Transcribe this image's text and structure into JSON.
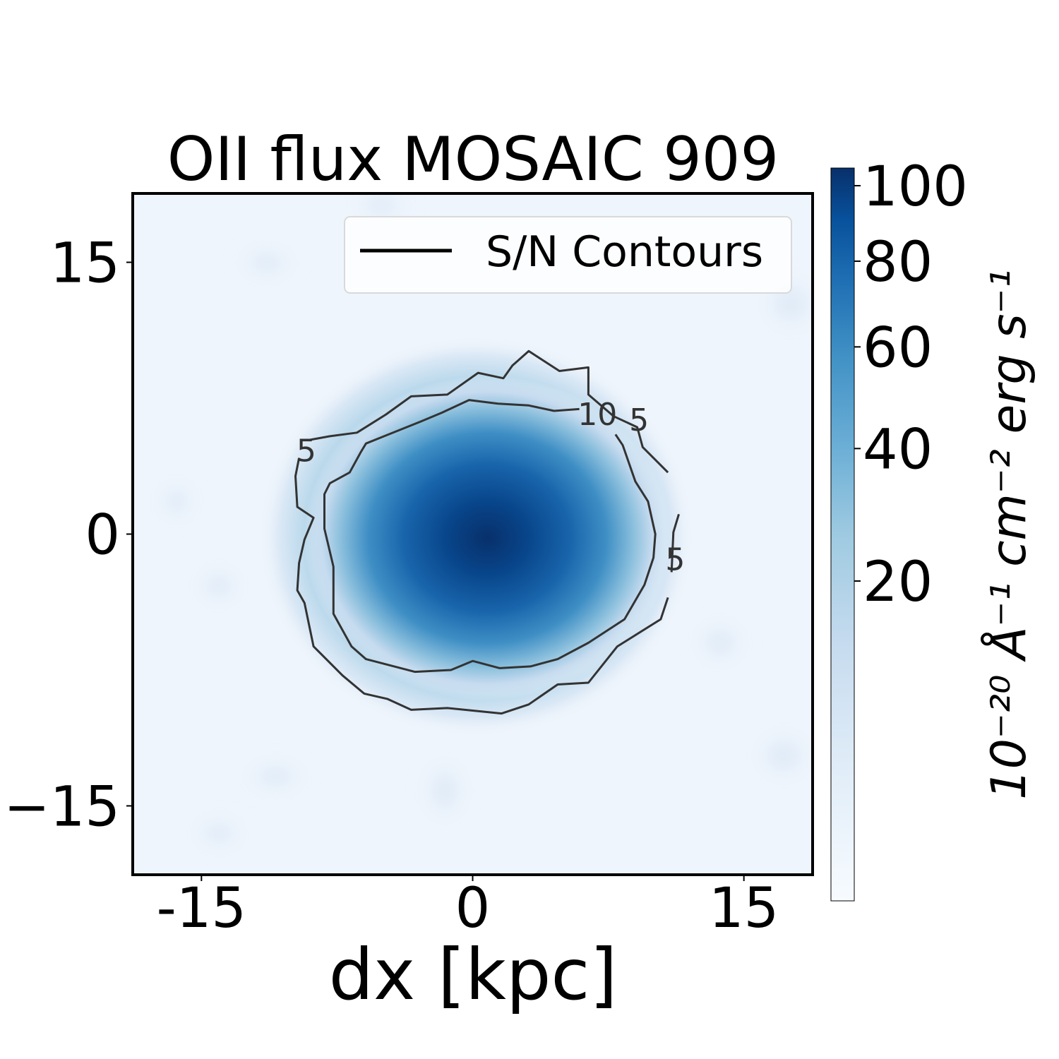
{
  "chart_data": {
    "type": "heatmap",
    "title": "OII flux MOSAIC 909",
    "xlabel": "dx [kpc]",
    "ylabel": "",
    "xlim": [
      -18.8,
      18.8
    ],
    "ylim": [
      -18.8,
      18.8
    ],
    "x_ticks": [
      {
        "v": -15,
        "label": "-15"
      },
      {
        "v": 0,
        "label": "0"
      },
      {
        "v": 15,
        "label": "15"
      }
    ],
    "y_ticks": [
      {
        "v": 15,
        "label": "15"
      },
      {
        "v": 0,
        "label": "0"
      },
      {
        "v": -15,
        "label": "−15"
      }
    ],
    "colormap": "Blues",
    "colorbar": {
      "range": [
        0,
        105
      ],
      "ticks": [
        20,
        40,
        60,
        80,
        100
      ],
      "label": "10⁻²⁰ Å⁻¹ cm⁻² erg s⁻¹"
    },
    "peak": {
      "x": 3.5,
      "y": -0.1,
      "value": 105
    },
    "legend": {
      "label": "S/N Contours",
      "position": "top-right"
    },
    "contours": [
      {
        "level": 5,
        "label": "5",
        "labels_at": [
          [
            -9.2,
            4.6
          ],
          [
            9.2,
            6.3
          ],
          [
            11.2,
            -1.4
          ]
        ],
        "points": [
          [
            -9.6,
            4.2
          ],
          [
            -9.8,
            3.2
          ],
          [
            -9.7,
            1.5
          ],
          [
            -8.8,
            0.9
          ],
          [
            -9.3,
            -0.3
          ],
          [
            -9.6,
            -1.6
          ],
          [
            -9.7,
            -3.1
          ],
          [
            -9.3,
            -3.8
          ],
          [
            -8.8,
            -6.2
          ],
          [
            -7.2,
            -7.8
          ],
          [
            -6.0,
            -8.8
          ],
          [
            -4.7,
            -9.1
          ],
          [
            -3.4,
            -9.7
          ],
          [
            -1.4,
            -9.6
          ],
          [
            1.6,
            -9.9
          ],
          [
            3.1,
            -9.4
          ],
          [
            4.7,
            -8.3
          ],
          [
            6.4,
            -8.2
          ],
          [
            8.0,
            -6.2
          ],
          [
            10.4,
            -4.7
          ],
          [
            10.8,
            -3.5
          ]
        ]
      },
      {
        "level": 5,
        "label": "",
        "labels_at": [],
        "points": [
          [
            -9.0,
            5.2
          ],
          [
            -7.9,
            5.4
          ],
          [
            -6.4,
            5.6
          ],
          [
            -4.8,
            6.6
          ],
          [
            -3.4,
            7.6
          ],
          [
            -1.4,
            7.7
          ],
          [
            0.3,
            8.9
          ],
          [
            1.7,
            8.6
          ],
          [
            2.2,
            9.3
          ],
          [
            3.1,
            10.1
          ],
          [
            4.8,
            9.0
          ],
          [
            6.4,
            9.2
          ],
          [
            6.4,
            7.7
          ],
          [
            7.8,
            6.5
          ],
          [
            9.1,
            5.9
          ],
          [
            9.4,
            4.8
          ],
          [
            10.8,
            3.4
          ]
        ]
      },
      {
        "level": 5,
        "label": "",
        "labels_at": [],
        "points": [
          [
            11.4,
            1.1
          ],
          [
            11.1,
            0.1
          ],
          [
            11.0,
            -2.1
          ]
        ]
      },
      {
        "level": 10,
        "label": "10",
        "labels_at": [
          [
            6.9,
            6.6
          ]
        ],
        "points": [
          [
            5.9,
            6.9
          ],
          [
            4.5,
            6.8
          ],
          [
            3.1,
            7.1
          ],
          [
            1.4,
            7.2
          ],
          [
            -0.2,
            7.4
          ],
          [
            -1.7,
            6.7
          ],
          [
            -2.9,
            6.2
          ],
          [
            -4.9,
            5.4
          ],
          [
            -5.9,
            5.0
          ],
          [
            -6.2,
            4.5
          ],
          [
            -6.8,
            3.4
          ],
          [
            -7.9,
            2.8
          ],
          [
            -8.2,
            2.2
          ],
          [
            -8.2,
            0.3
          ],
          [
            -7.7,
            -1.8
          ],
          [
            -7.7,
            -4.4
          ],
          [
            -6.7,
            -6.2
          ],
          [
            -5.9,
            -6.9
          ],
          [
            -3.2,
            -7.6
          ],
          [
            -1.2,
            -7.5
          ],
          [
            0.0,
            -7.0
          ],
          [
            1.5,
            -7.4
          ],
          [
            3.2,
            -7.3
          ],
          [
            4.7,
            -6.9
          ],
          [
            6.4,
            -6.0
          ],
          [
            8.4,
            -4.7
          ],
          [
            9.5,
            -2.8
          ],
          [
            10.0,
            -1.3
          ],
          [
            10.1,
            0.0
          ],
          [
            9.7,
            1.8
          ],
          [
            9.0,
            2.9
          ],
          [
            8.3,
            4.9
          ],
          [
            7.9,
            5.5
          ]
        ]
      }
    ]
  }
}
